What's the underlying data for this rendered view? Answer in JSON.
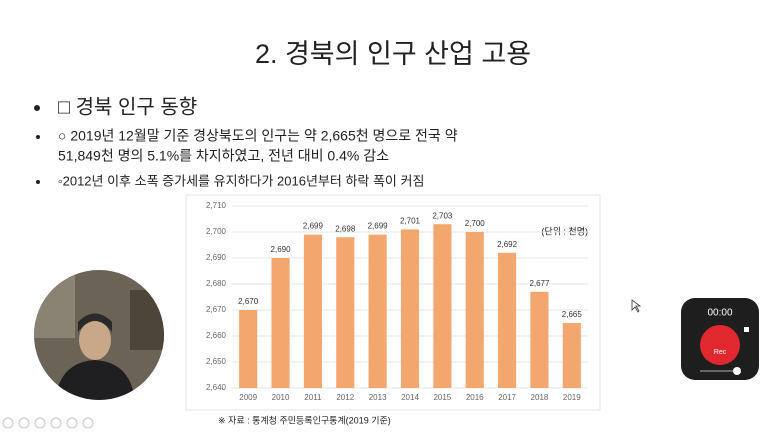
{
  "slide": {
    "title": "2. 경북의 인구 산업 고용",
    "heading": "□ 경북 인구 동향",
    "bullets": [
      {
        "lines": [
          "○ 2019년 12월말 기준 경상북도의 인구는 약 2,665천 명으로 전국 약",
          "51,849천 명의 5.1%를 차지하였고, 전년 대비 0.4% 감소"
        ]
      },
      {
        "lines": [
          "◦2012년 이후 소폭 증가세를 유지하다가 2016년부터 하락 폭이 커짐"
        ]
      }
    ],
    "source": "※ 자료 : 통계청 주민등록인구통계(2019 기준)"
  },
  "chart_data": {
    "type": "bar",
    "annotation": "(단위 : 천명)",
    "categories": [
      "2009",
      "2010",
      "2011",
      "2012",
      "2013",
      "2014",
      "2015",
      "2016",
      "2017",
      "2018",
      "2019"
    ],
    "values": [
      2670,
      2690,
      2699,
      2698,
      2699,
      2701,
      2703,
      2700,
      2692,
      2677,
      2665
    ],
    "value_labels": [
      "2,670",
      "2,690",
      "2,699",
      "2,698",
      "2,699",
      "2,701",
      "2,703",
      "2,700",
      "2,692",
      "2,677",
      "2,665"
    ],
    "color": "#f4a66f",
    "ylim": [
      2640,
      2710
    ],
    "yticks": [
      {
        "value": 2640,
        "label": "2,640"
      },
      {
        "value": 2650,
        "label": "2,650"
      },
      {
        "value": 2660,
        "label": "2,660"
      },
      {
        "value": 2670,
        "label": "2,670"
      },
      {
        "value": 2680,
        "label": "2,680"
      },
      {
        "value": 2690,
        "label": "2,690"
      },
      {
        "value": 2700,
        "label": "2,700"
      },
      {
        "value": 2710,
        "label": "2,710"
      }
    ],
    "grid": true
  },
  "recorder": {
    "time": "00:00",
    "button": "Rec"
  }
}
